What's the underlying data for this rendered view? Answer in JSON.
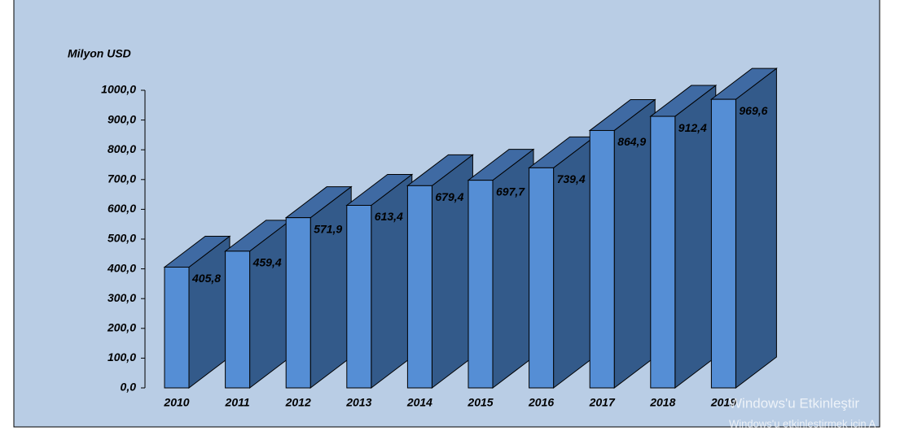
{
  "chart_data": {
    "type": "bar3d",
    "y_label": "Milyon USD",
    "categories": [
      "2010",
      "2011",
      "2012",
      "2013",
      "2014",
      "2015",
      "2016",
      "2017",
      "2018",
      "2019"
    ],
    "values": [
      405.8,
      459.4,
      571.9,
      613.4,
      679.4,
      697.7,
      739.4,
      864.9,
      912.4,
      969.6
    ],
    "value_labels": [
      "405,8",
      "459,4",
      "571,9",
      "613,4",
      "679,4",
      "697,7",
      "739,4",
      "864,9",
      "912,4",
      "969,6"
    ],
    "color": "#558ed5",
    "ylim": [
      0,
      1000
    ],
    "yticks": [
      {
        "value": 0,
        "label": "0,0"
      },
      {
        "value": 100,
        "label": "100,0"
      },
      {
        "value": 200,
        "label": "200,0"
      },
      {
        "value": 300,
        "label": "300,0"
      },
      {
        "value": 400,
        "label": "400,0"
      },
      {
        "value": 500,
        "label": "500,0"
      },
      {
        "value": 600,
        "label": "600,0"
      },
      {
        "value": 700,
        "label": "700,0"
      },
      {
        "value": 800,
        "label": "800,0"
      },
      {
        "value": 900,
        "label": "900,0"
      },
      {
        "value": 1000,
        "label": "1000,0"
      }
    ],
    "grid": false
  },
  "watermark": {
    "title": "Windows'u Etkinleştir",
    "subtitle": "Windows'u etkinleştirmek için A"
  }
}
